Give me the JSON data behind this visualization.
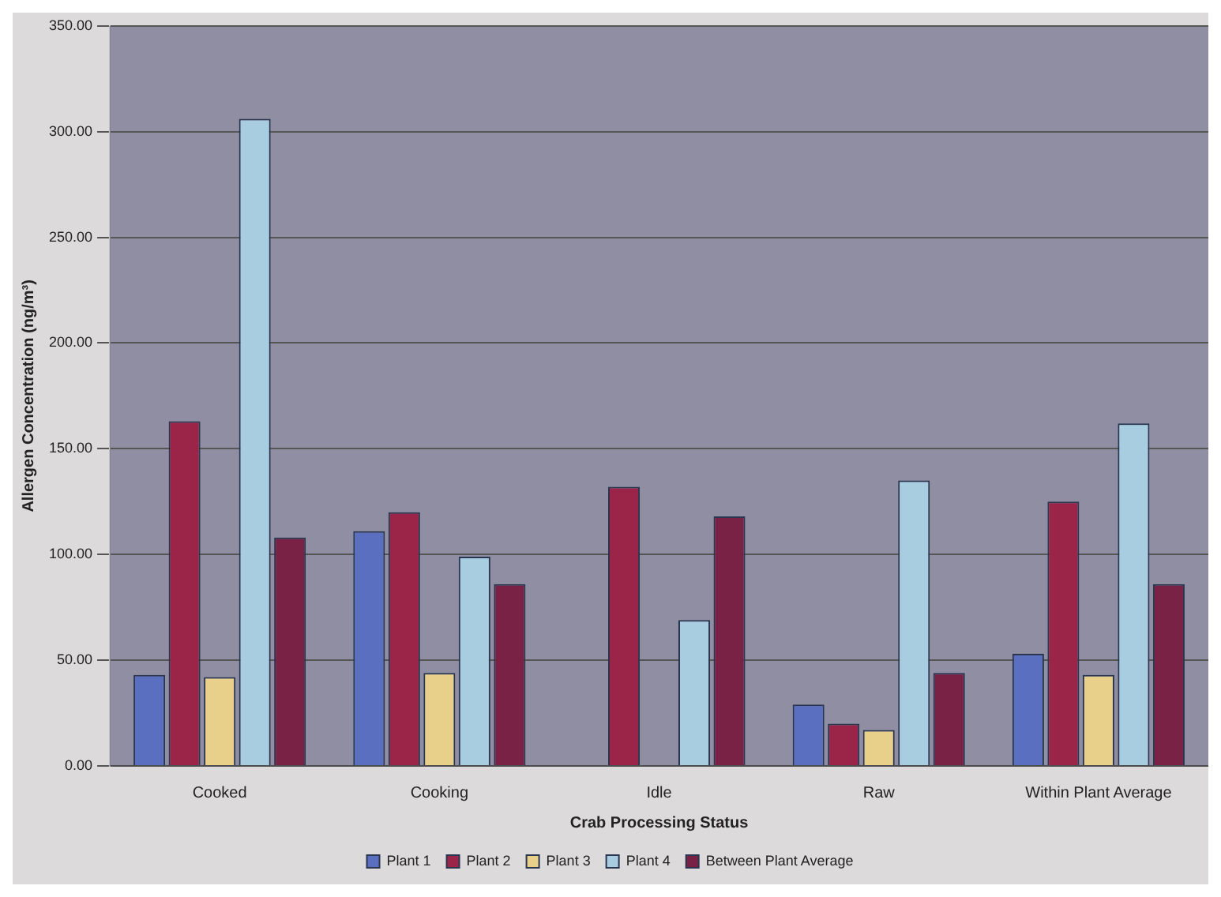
{
  "chart_data": {
    "type": "bar",
    "xlabel": "Crab Processing Status",
    "ylabel": "Allergen Concentration (ng/m³)",
    "categories": [
      "Cooked",
      "Cooking",
      "Idle",
      "Raw",
      "Within Plant Average"
    ],
    "series": [
      {
        "name": "Plant 1",
        "color": "#5a6fc0",
        "values": [
          43,
          111,
          null,
          29,
          53
        ]
      },
      {
        "name": "Plant 2",
        "color": "#9b2548",
        "values": [
          163,
          120,
          132,
          20,
          125
        ]
      },
      {
        "name": "Plant 3",
        "color": "#e8d08a",
        "values": [
          42,
          44,
          null,
          17,
          43
        ]
      },
      {
        "name": "Plant 4",
        "color": "#a8cce0",
        "values": [
          306,
          99,
          69,
          135,
          162
        ]
      },
      {
        "name": "Between Plant Average",
        "color": "#7a2246",
        "values": [
          108,
          86,
          118,
          44,
          86
        ]
      }
    ],
    "ylim": [
      0,
      350
    ],
    "yticks": [
      {
        "value": 0,
        "label": "0.00"
      },
      {
        "value": 50,
        "label": "50.00"
      },
      {
        "value": 100,
        "label": "100.00"
      },
      {
        "value": 150,
        "label": "150.00"
      },
      {
        "value": 200,
        "label": "200.00"
      },
      {
        "value": 250,
        "label": "250.00"
      },
      {
        "value": 300,
        "label": "300.00"
      },
      {
        "value": 350,
        "label": "350.00"
      }
    ],
    "grid": "y",
    "legend": "bottom"
  }
}
